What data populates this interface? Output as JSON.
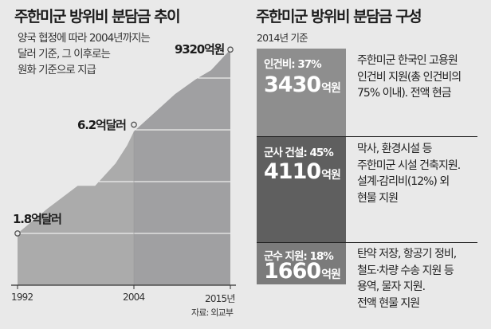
{
  "left": {
    "title": "주한미군 방위비 분담금 추이",
    "subtitle_lines": [
      "양국 협정에 따라 2004년까지는",
      "달러 기준, 그 이후로는",
      "원화 기준으로 지급"
    ],
    "source": "자료: 외교부"
  },
  "chart_data": {
    "type": "area",
    "title": "주한미군 방위비 분담금 추이",
    "x_ticks": [
      "1992",
      "2004",
      "2015년"
    ],
    "xlim": [
      1992,
      2015
    ],
    "annotations": [
      {
        "x": 1992,
        "label": "1.8억달러",
        "value": 1.8,
        "unit": "억달러"
      },
      {
        "x": 2004,
        "label": "6.2억달러",
        "value": 6.2,
        "unit": "억달러"
      },
      {
        "x": 2015,
        "label": "9320억원",
        "value": 9320,
        "unit": "억원"
      }
    ],
    "shape_note": "relative level, gridline units",
    "series": [
      {
        "name": "분담금",
        "x": [
          1992,
          1995.1,
          1998.2,
          2000,
          2002.1,
          2003.3,
          2004,
          2008.7,
          2011,
          2012.8,
          2015
        ],
        "y": [
          1.0,
          1.48,
          1.92,
          1.92,
          2.35,
          2.7,
          2.97,
          3.69,
          3.97,
          4.15,
          4.55
        ]
      }
    ],
    "grid": true,
    "colors": {
      "area_before": "#ababab",
      "area_after": "#a0a0a2",
      "grid": "#ffffff"
    }
  },
  "right": {
    "title": "주한미군 방위비 분담금 구성",
    "subtitle": "2014년 기준",
    "items": [
      {
        "header": "인건비: 37%",
        "amount": "3430",
        "unit": "억원",
        "desc": "주한미군 한국인 고용원\n인건비 지원(총 인건비의\n75% 이내). 전액 현금",
        "color": "#8e8e8e"
      },
      {
        "header": "군사 건설: 45%",
        "amount": "4110",
        "unit": "억원",
        "desc": "막사, 환경시설 등\n주한미군 시설 건축지원.\n설계·감리비(12%) 외\n현물 지원",
        "color": "#5f5f5f"
      },
      {
        "header": "군수 지원: 18%",
        "amount": "1660",
        "unit": "억원",
        "desc": "탄약 저장, 항공기 정비,\n철도·차량 수송 지원 등\n용역, 물자 지원.\n전액 현물 지원",
        "color": "#7b7b7b"
      }
    ]
  }
}
